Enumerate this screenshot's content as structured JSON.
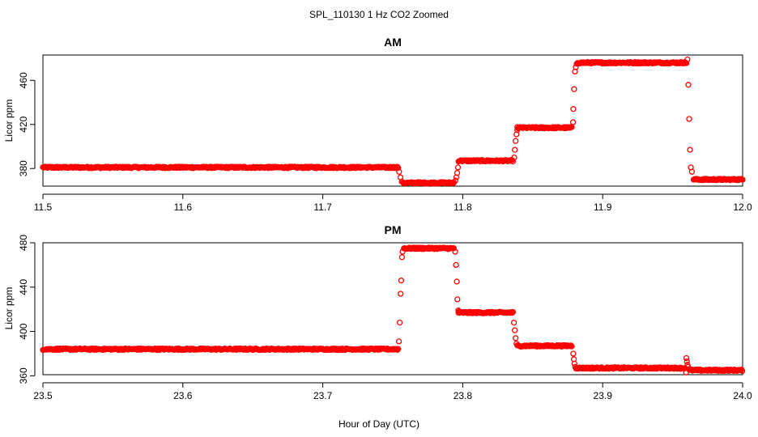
{
  "figure": {
    "title": "SPL_110130  1 Hz CO2 Zoomed",
    "xlabel": "Hour of Day (UTC)"
  },
  "colors": {
    "points": "#ff0000",
    "axes": "#000000"
  },
  "chart_data": [
    {
      "type": "scatter",
      "title": "AM",
      "xlabel": "",
      "ylabel": "Licor ppm",
      "xlim": [
        11.5,
        12.0
      ],
      "ylim": [
        364,
        483
      ],
      "xticks": [
        11.5,
        11.6,
        11.7,
        11.8,
        11.9,
        12.0
      ],
      "xtick_labels": [
        "11.5",
        "11.6",
        "11.7",
        "11.8",
        "11.9",
        "12.0"
      ],
      "yticks": [
        380,
        420,
        460
      ],
      "ytick_labels": [
        "380",
        "420",
        "460"
      ],
      "marker": "open-circle",
      "segments": [
        {
          "x_start": 11.5,
          "x_end": 11.754,
          "y": 381
        },
        {
          "x_start": 11.757,
          "x_end": 11.794,
          "y": 367
        },
        {
          "x_start": 11.797,
          "x_end": 11.836,
          "y": 387
        },
        {
          "x_start": 11.839,
          "x_end": 11.878,
          "y": 417
        },
        {
          "x_start": 11.882,
          "x_end": 11.96,
          "y": 476
        },
        {
          "x_start": 11.965,
          "x_end": 12.0,
          "y": 370
        }
      ],
      "transitions": [
        {
          "x": [
            11.7545,
            11.7555,
            11.7565
          ],
          "y": [
            377,
            372,
            368
          ]
        },
        {
          "x": [
            11.7948,
            11.7954,
            11.796,
            11.7966
          ],
          "y": [
            369,
            372,
            376,
            381
          ]
        },
        {
          "x": [
            11.8368,
            11.8372,
            11.8378,
            11.8384,
            11.839
          ],
          "y": [
            390,
            397,
            405,
            411,
            415
          ]
        },
        {
          "x": [
            11.8788,
            11.879,
            11.8796,
            11.8802,
            11.8808,
            11.8814
          ],
          "y": [
            422,
            434,
            452,
            468,
            472,
            475
          ]
        },
        {
          "x": [
            11.9606,
            11.9612,
            11.9618,
            11.9624,
            11.963,
            11.9638
          ],
          "y": [
            479,
            456,
            425,
            397,
            381,
            377
          ]
        }
      ]
    },
    {
      "type": "scatter",
      "title": "PM",
      "xlabel": "",
      "ylabel": "Licor ppm",
      "xlim": [
        23.5,
        24.0
      ],
      "ylim": [
        361,
        480
      ],
      "xticks": [
        23.5,
        23.6,
        23.7,
        23.8,
        23.9,
        24.0
      ],
      "xtick_labels": [
        "23.5",
        "23.6",
        "23.7",
        "23.8",
        "23.9",
        "24.0"
      ],
      "yticks": [
        360,
        400,
        440,
        480
      ],
      "ytick_labels": [
        "360",
        "400",
        "440",
        "480"
      ],
      "marker": "open-circle",
      "segments": [
        {
          "x_start": 23.5,
          "x_end": 23.754,
          "y": 384
        },
        {
          "x_start": 23.758,
          "x_end": 23.794,
          "y": 475
        },
        {
          "x_start": 23.797,
          "x_end": 23.836,
          "y": 417
        },
        {
          "x_start": 23.839,
          "x_end": 23.878,
          "y": 387
        },
        {
          "x_start": 23.881,
          "x_end": 23.959,
          "y": 367
        },
        {
          "x_start": 23.962,
          "x_end": 24.0,
          "y": 365
        }
      ],
      "transitions": [
        {
          "x": [
            23.7544,
            23.755,
            23.7556,
            23.756,
            23.7566,
            23.757
          ],
          "y": [
            391,
            408,
            434,
            446,
            467,
            472
          ]
        },
        {
          "x": [
            23.7946,
            23.7952,
            23.7958,
            23.7962,
            23.7968,
            23.7974
          ],
          "y": [
            472,
            460,
            445,
            429,
            419,
            418
          ]
        },
        {
          "x": [
            23.8366,
            23.8372,
            23.8378,
            23.8384
          ],
          "y": [
            408,
            401,
            394,
            389
          ]
        },
        {
          "x": [
            23.879,
            23.8794,
            23.8798,
            23.8804
          ],
          "y": [
            380,
            375,
            371,
            368
          ]
        },
        {
          "x": [
            23.9598,
            23.9602,
            23.9606,
            23.961,
            23.9596
          ],
          "y": [
            376,
            373,
            370,
            368,
            363
          ]
        }
      ]
    }
  ]
}
